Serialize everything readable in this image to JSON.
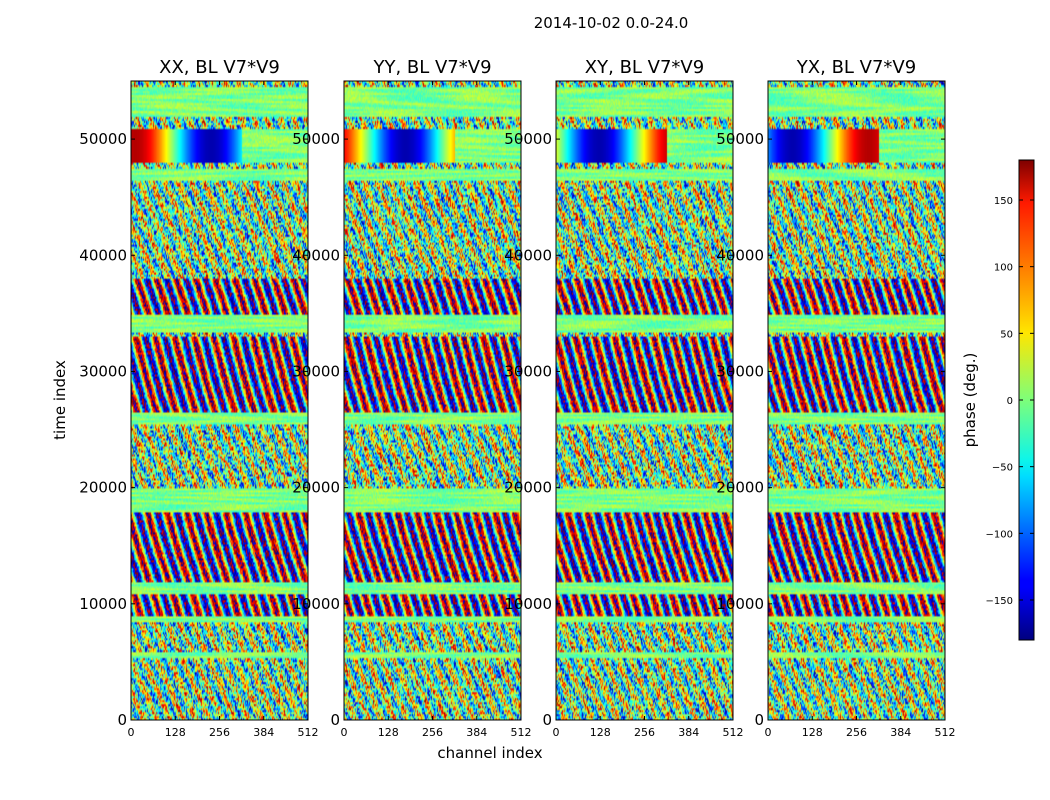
{
  "chart_data": {
    "type": "heatmap",
    "title": "2014-10-02 0.0-24.0",
    "xlabel": "channel index",
    "ylabel": "time index",
    "xlim": [
      0,
      512
    ],
    "ylim": [
      0,
      55000
    ],
    "x_ticks": [
      0,
      128,
      256,
      384,
      512
    ],
    "y_ticks": [
      0,
      10000,
      20000,
      30000,
      40000,
      50000
    ],
    "colormap": "jet",
    "panels": [
      {
        "title": "XX, BL V7*V9",
        "polarization": "XX"
      },
      {
        "title": "YY, BL V7*V9",
        "polarization": "YY"
      },
      {
        "title": "XY, BL V7*V9",
        "polarization": "XY"
      },
      {
        "title": "YX, BL V7*V9",
        "polarization": "YX"
      }
    ],
    "colorbar": {
      "label": "phase (deg.)",
      "range": [
        -180,
        180
      ],
      "ticks": [
        -150,
        -100,
        -50,
        0,
        50,
        100,
        150
      ],
      "tick_labels": [
        "−150",
        "−100",
        "−50",
        "0",
        "50",
        "100",
        "150"
      ]
    }
  }
}
